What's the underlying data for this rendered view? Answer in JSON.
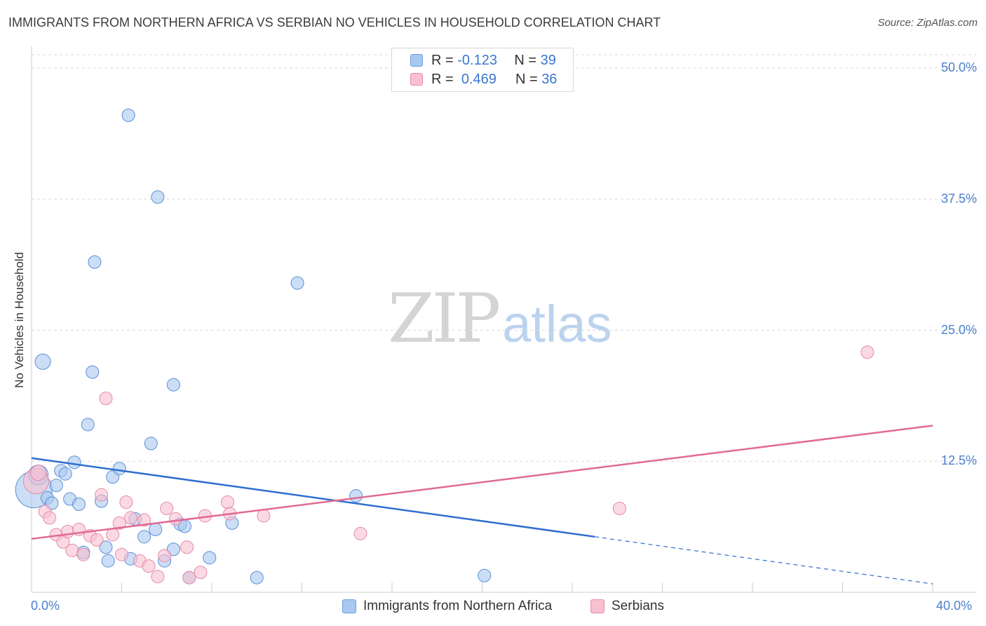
{
  "title": "IMMIGRANTS FROM NORTHERN AFRICA VS SERBIAN NO VEHICLES IN HOUSEHOLD CORRELATION CHART",
  "source": "Source: ZipAtlas.com",
  "watermark": {
    "zip": "ZIP",
    "atlas": "atlas"
  },
  "legend": {
    "rows": [
      {
        "r_label": "R =",
        "r_value": "-0.123",
        "n_label": "N =",
        "n_value": "39",
        "color": "#a8c8f0",
        "border": "#6a9fe0"
      },
      {
        "r_label": "R =",
        "r_value": "0.469",
        "n_label": "N =",
        "n_value": "36",
        "color": "#f8c0d0",
        "border": "#e88aa8"
      }
    ]
  },
  "bottom_legend": [
    {
      "label": "Immigrants from Northern Africa",
      "color": "#a8c8f0",
      "border": "#6a9fe0"
    },
    {
      "label": "Serbians",
      "color": "#f8c0d0",
      "border": "#e88aa8"
    }
  ],
  "colors": {
    "series1_fill": "#a8c8f0",
    "series1_stroke": "#5b8fd6",
    "series1_line": "#2f6fd0",
    "series2_fill": "#f8c0d0",
    "series2_stroke": "#e48aa8",
    "series2_line": "#e26a94",
    "grid": "#d9d9d9",
    "axis": "#cccccc",
    "tick_text": "#4a80cc"
  },
  "chart_data": {
    "type": "scatter",
    "title": "IMMIGRANTS FROM NORTHERN AFRICA VS SERBIAN NO VEHICLES IN HOUSEHOLD CORRELATION CHART",
    "xlabel": "",
    "ylabel": "No Vehicles in Household",
    "xlim": [
      0,
      40
    ],
    "ylim": [
      0,
      50
    ],
    "x_tick_labels": [
      "0.0%",
      "40.0%"
    ],
    "y_ticks": [
      12.5,
      25.0,
      37.5,
      50.0
    ],
    "y_tick_labels": [
      "12.5%",
      "25.0%",
      "37.5%",
      "50.0%"
    ],
    "grid": true,
    "legend_position": "top-center",
    "series": [
      {
        "name": "Immigrants from Northern Africa",
        "r": -0.123,
        "n": 39,
        "points": [
          {
            "x": 0.1,
            "y": 9.8,
            "size": 26
          },
          {
            "x": 0.3,
            "y": 11.2,
            "size": 14
          },
          {
            "x": 0.5,
            "y": 22.0,
            "size": 11
          },
          {
            "x": 0.7,
            "y": 9.0,
            "size": 9
          },
          {
            "x": 0.9,
            "y": 8.5,
            "size": 9
          },
          {
            "x": 1.1,
            "y": 10.2,
            "size": 9
          },
          {
            "x": 1.3,
            "y": 11.6,
            "size": 9
          },
          {
            "x": 1.5,
            "y": 11.3,
            "size": 9
          },
          {
            "x": 1.7,
            "y": 8.9,
            "size": 9
          },
          {
            "x": 1.9,
            "y": 12.4,
            "size": 9
          },
          {
            "x": 2.1,
            "y": 8.4,
            "size": 9
          },
          {
            "x": 2.3,
            "y": 3.8,
            "size": 9
          },
          {
            "x": 2.5,
            "y": 16.0,
            "size": 9
          },
          {
            "x": 2.7,
            "y": 21.0,
            "size": 9
          },
          {
            "x": 2.8,
            "y": 31.5,
            "size": 9
          },
          {
            "x": 3.1,
            "y": 8.7,
            "size": 9
          },
          {
            "x": 3.3,
            "y": 4.3,
            "size": 9
          },
          {
            "x": 3.4,
            "y": 3.0,
            "size": 9
          },
          {
            "x": 3.6,
            "y": 11.0,
            "size": 9
          },
          {
            "x": 3.9,
            "y": 11.8,
            "size": 9
          },
          {
            "x": 4.3,
            "y": 45.5,
            "size": 9
          },
          {
            "x": 4.4,
            "y": 3.2,
            "size": 9
          },
          {
            "x": 4.6,
            "y": 7.0,
            "size": 9
          },
          {
            "x": 5.0,
            "y": 5.3,
            "size": 9
          },
          {
            "x": 5.3,
            "y": 14.2,
            "size": 9
          },
          {
            "x": 5.5,
            "y": 6.0,
            "size": 9
          },
          {
            "x": 5.6,
            "y": 37.7,
            "size": 9
          },
          {
            "x": 5.9,
            "y": 3.0,
            "size": 9
          },
          {
            "x": 6.3,
            "y": 4.1,
            "size": 9
          },
          {
            "x": 6.3,
            "y": 19.8,
            "size": 9
          },
          {
            "x": 6.6,
            "y": 6.5,
            "size": 9
          },
          {
            "x": 6.8,
            "y": 6.3,
            "size": 9
          },
          {
            "x": 7.0,
            "y": 1.4,
            "size": 9
          },
          {
            "x": 7.9,
            "y": 3.3,
            "size": 9
          },
          {
            "x": 8.9,
            "y": 6.6,
            "size": 9
          },
          {
            "x": 10.0,
            "y": 1.4,
            "size": 9
          },
          {
            "x": 11.8,
            "y": 29.5,
            "size": 9
          },
          {
            "x": 14.4,
            "y": 9.2,
            "size": 9
          },
          {
            "x": 20.1,
            "y": 1.6,
            "size": 9
          }
        ],
        "trend": {
          "x": [
            0,
            25
          ],
          "y": [
            12.8,
            5.3
          ],
          "dashed_to": {
            "x": 40,
            "y": 0.8
          }
        }
      },
      {
        "name": "Serbians",
        "r": 0.469,
        "n": 36,
        "points": [
          {
            "x": 0.2,
            "y": 10.6,
            "size": 18
          },
          {
            "x": 0.3,
            "y": 11.4,
            "size": 11
          },
          {
            "x": 0.6,
            "y": 7.7,
            "size": 9
          },
          {
            "x": 0.8,
            "y": 7.1,
            "size": 9
          },
          {
            "x": 1.1,
            "y": 5.5,
            "size": 9
          },
          {
            "x": 1.4,
            "y": 4.8,
            "size": 9
          },
          {
            "x": 1.6,
            "y": 5.8,
            "size": 9
          },
          {
            "x": 1.8,
            "y": 4.0,
            "size": 9
          },
          {
            "x": 2.1,
            "y": 6.0,
            "size": 9
          },
          {
            "x": 2.3,
            "y": 3.6,
            "size": 9
          },
          {
            "x": 2.6,
            "y": 5.4,
            "size": 9
          },
          {
            "x": 2.9,
            "y": 5.0,
            "size": 9
          },
          {
            "x": 3.1,
            "y": 9.3,
            "size": 9
          },
          {
            "x": 3.3,
            "y": 18.5,
            "size": 9
          },
          {
            "x": 3.6,
            "y": 5.5,
            "size": 9
          },
          {
            "x": 3.9,
            "y": 6.6,
            "size": 9
          },
          {
            "x": 4.0,
            "y": 3.6,
            "size": 9
          },
          {
            "x": 4.2,
            "y": 8.6,
            "size": 9
          },
          {
            "x": 4.4,
            "y": 7.1,
            "size": 9
          },
          {
            "x": 4.8,
            "y": 3.0,
            "size": 9
          },
          {
            "x": 5.0,
            "y": 6.9,
            "size": 9
          },
          {
            "x": 5.2,
            "y": 2.5,
            "size": 9
          },
          {
            "x": 5.6,
            "y": 1.5,
            "size": 9
          },
          {
            "x": 5.9,
            "y": 3.5,
            "size": 9
          },
          {
            "x": 6.0,
            "y": 8.0,
            "size": 9
          },
          {
            "x": 6.4,
            "y": 7.0,
            "size": 9
          },
          {
            "x": 6.9,
            "y": 4.3,
            "size": 9
          },
          {
            "x": 7.0,
            "y": 1.4,
            "size": 9
          },
          {
            "x": 7.5,
            "y": 1.9,
            "size": 9
          },
          {
            "x": 7.7,
            "y": 7.3,
            "size": 9
          },
          {
            "x": 8.7,
            "y": 8.6,
            "size": 9
          },
          {
            "x": 8.8,
            "y": 7.5,
            "size": 9
          },
          {
            "x": 10.3,
            "y": 7.3,
            "size": 9
          },
          {
            "x": 14.6,
            "y": 5.6,
            "size": 9
          },
          {
            "x": 26.1,
            "y": 8.0,
            "size": 9
          },
          {
            "x": 37.1,
            "y": 22.9,
            "size": 9
          }
        ],
        "trend": {
          "x": [
            0,
            40
          ],
          "y": [
            5.1,
            15.9
          ]
        }
      }
    ]
  }
}
